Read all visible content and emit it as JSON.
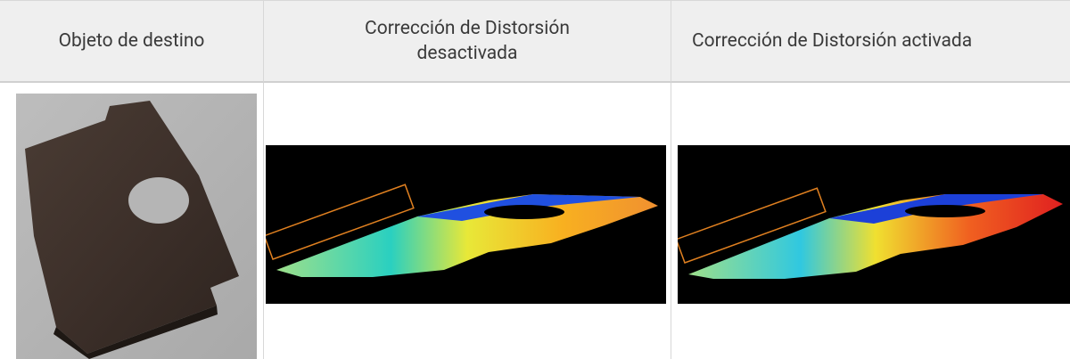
{
  "table": {
    "headers": [
      "Objeto de destino",
      "Corrección de Distorsión desactivada",
      "Corrección de Distorsión activada"
    ]
  }
}
